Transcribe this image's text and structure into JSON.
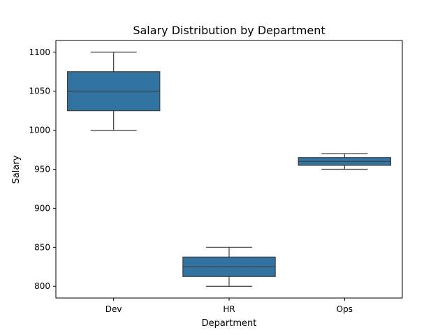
{
  "chart_data": {
    "type": "box",
    "title": "Salary Distribution by Department",
    "xlabel": "Department",
    "ylabel": "Salary",
    "categories": [
      "Dev",
      "HR",
      "Ops"
    ],
    "boxes": [
      {
        "category": "Dev",
        "whisker_low": 1000,
        "q1": 1025,
        "median": 1050,
        "q3": 1075,
        "whisker_high": 1100
      },
      {
        "category": "HR",
        "whisker_low": 800,
        "q1": 812.5,
        "median": 825,
        "q3": 837.5,
        "whisker_high": 850
      },
      {
        "category": "Ops",
        "whisker_low": 950,
        "q1": 955,
        "median": 960,
        "q3": 965,
        "whisker_high": 970
      }
    ],
    "yticks": [
      800,
      850,
      900,
      950,
      1000,
      1050,
      1100
    ],
    "ylim": [
      785,
      1115
    ],
    "grid": false,
    "colors": {
      "box_fill": "#3274a1",
      "line": "#3f3f3f",
      "axis": "#000000"
    }
  }
}
